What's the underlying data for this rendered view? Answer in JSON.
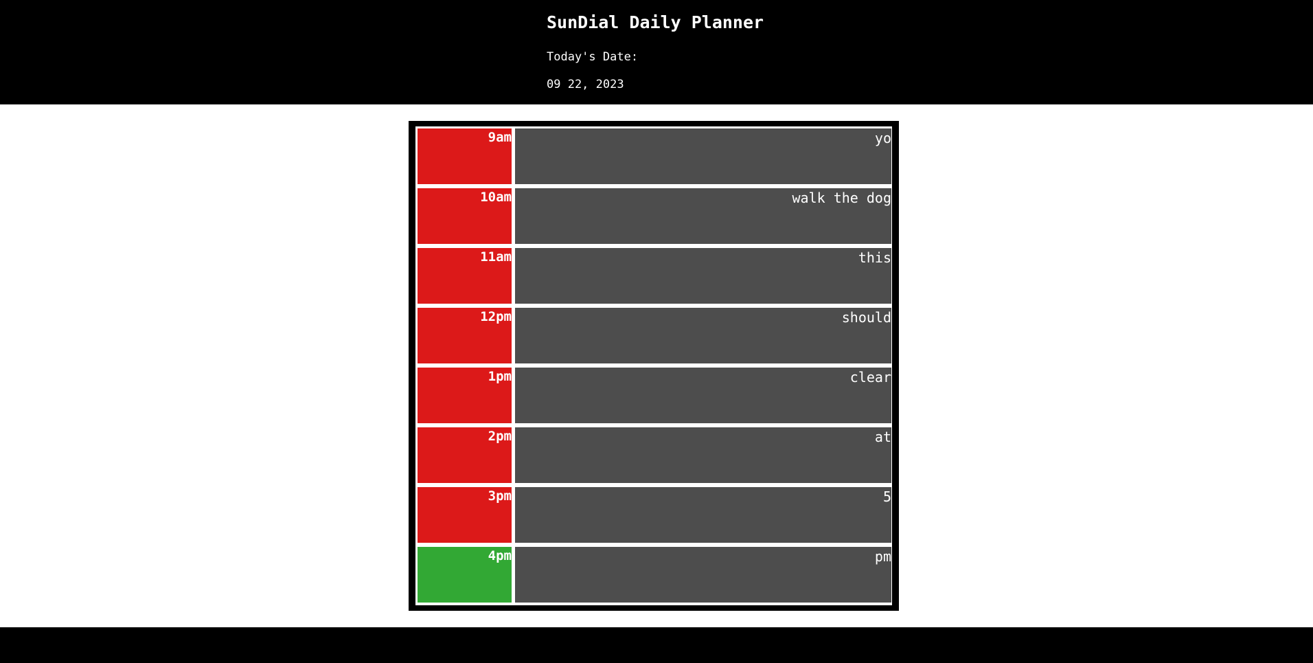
{
  "header": {
    "title": "SunDial Daily Planner",
    "date_label": "Today's Date:",
    "date_value": "09 22, 2023"
  },
  "colors": {
    "past": "#dc1919",
    "present": "#32a834",
    "task_bg": "#4d4d4d"
  },
  "rows": [
    {
      "hour": "9am",
      "task": "yo",
      "status": "past"
    },
    {
      "hour": "10am",
      "task": "walk the dog",
      "status": "past"
    },
    {
      "hour": "11am",
      "task": "this",
      "status": "past"
    },
    {
      "hour": "12pm",
      "task": "should",
      "status": "past"
    },
    {
      "hour": "1pm",
      "task": "clear",
      "status": "past"
    },
    {
      "hour": "2pm",
      "task": "at",
      "status": "past"
    },
    {
      "hour": "3pm",
      "task": "5",
      "status": "past"
    },
    {
      "hour": "4pm",
      "task": "pm",
      "status": "present"
    }
  ]
}
